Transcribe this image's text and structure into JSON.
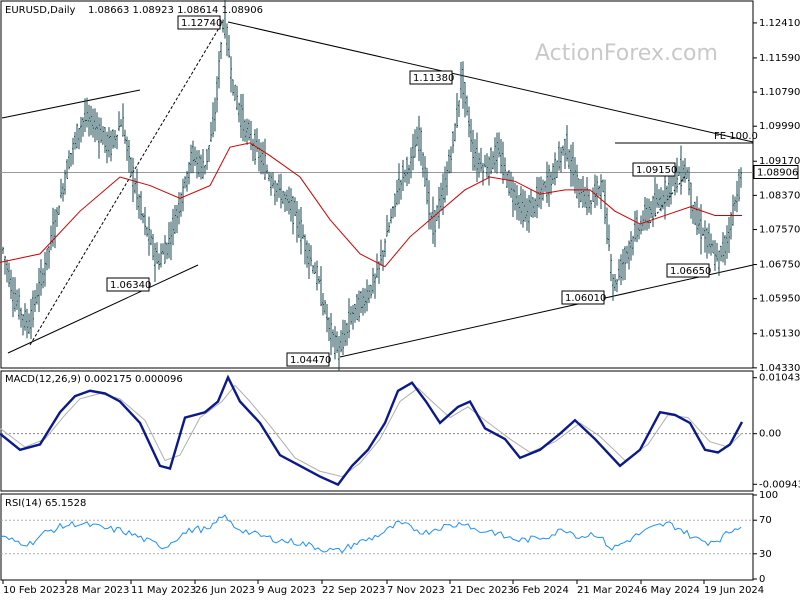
{
  "header": {
    "title": "EURUSD,Daily",
    "ohlc": "1.08663 1.08923 1.08614 1.08906"
  },
  "watermark": "ActionForex.com",
  "chart_data": [
    {
      "type": "candlestick",
      "ylim": [
        1.0435,
        1.129
      ],
      "ticks": [
        "1.12410",
        "1.11590",
        "1.10790",
        "1.09990",
        "1.09170",
        "1.08370",
        "1.07570",
        "1.06750",
        "1.05950",
        "1.05130",
        "1.04330"
      ],
      "tick_values": [
        1.1241,
        1.1159,
        1.1079,
        1.0999,
        1.0917,
        1.0837,
        1.0757,
        1.0675,
        1.0595,
        1.0513,
        1.0433
      ],
      "last_price": "1.08906",
      "x_labels": [
        "10 Feb 2023",
        "28 Mar 2023",
        "11 May 2023",
        "26 Jun 2023",
        "9 Aug 2023",
        "22 Sep 2023",
        "7 Nov 2023",
        "21 Dec 2023",
        "6 Feb 2024",
        "21 Mar 2024",
        "6 May 2024",
        "19 Jun 2024"
      ],
      "annotations": [
        "1.12740",
        "1.11380",
        "1.06340",
        "1.04470",
        "1.06010",
        "1.09150",
        "1.06650"
      ],
      "fe_label": "FE 100.0",
      "price_path": [
        [
          0,
          1.074
        ],
        [
          14,
          1.06
        ],
        [
          28,
          1.053
        ],
        [
          42,
          1.064
        ],
        [
          56,
          1.078
        ],
        [
          70,
          1.093
        ],
        [
          84,
          1.102
        ],
        [
          96,
          1.1
        ],
        [
          110,
          1.095
        ],
        [
          122,
          1.101
        ],
        [
          134,
          1.087
        ],
        [
          146,
          1.076
        ],
        [
          158,
          1.068
        ],
        [
          168,
          1.072
        ],
        [
          180,
          1.082
        ],
        [
          192,
          1.093
        ],
        [
          204,
          1.09
        ],
        [
          214,
          1.1
        ],
        [
          224,
          1.1262
        ],
        [
          234,
          1.108
        ],
        [
          246,
          1.099
        ],
        [
          258,
          1.094
        ],
        [
          270,
          1.088
        ],
        [
          282,
          1.084
        ],
        [
          294,
          1.08
        ],
        [
          306,
          1.072
        ],
        [
          318,
          1.064
        ],
        [
          330,
          1.052
        ],
        [
          340,
          1.047
        ],
        [
          352,
          1.056
        ],
        [
          364,
          1.059
        ],
        [
          376,
          1.064
        ],
        [
          388,
          1.075
        ],
        [
          400,
          1.087
        ],
        [
          412,
          1.092
        ],
        [
          420,
          1.098
        ],
        [
          432,
          1.076
        ],
        [
          444,
          1.084
        ],
        [
          456,
          1.1
        ],
        [
          462,
          1.112
        ],
        [
          474,
          1.093
        ],
        [
          486,
          1.09
        ],
        [
          498,
          1.094
        ],
        [
          512,
          1.085
        ],
        [
          526,
          1.079
        ],
        [
          538,
          1.083
        ],
        [
          552,
          1.088
        ],
        [
          566,
          1.096
        ],
        [
          578,
          1.085
        ],
        [
          590,
          1.082
        ],
        [
          602,
          1.087
        ],
        [
          614,
          1.062
        ],
        [
          626,
          1.07
        ],
        [
          638,
          1.076
        ],
        [
          650,
          1.08
        ],
        [
          662,
          1.083
        ],
        [
          674,
          1.088
        ],
        [
          686,
          1.09
        ],
        [
          696,
          1.078
        ],
        [
          708,
          1.073
        ],
        [
          718,
          1.068
        ],
        [
          728,
          1.074
        ],
        [
          736,
          1.083
        ],
        [
          742,
          1.089
        ]
      ],
      "ma_path": [
        [
          0,
          1.068
        ],
        [
          40,
          1.07
        ],
        [
          80,
          1.08
        ],
        [
          120,
          1.088
        ],
        [
          150,
          1.086
        ],
        [
          180,
          1.083
        ],
        [
          210,
          1.086
        ],
        [
          230,
          1.095
        ],
        [
          250,
          1.096
        ],
        [
          270,
          1.093
        ],
        [
          300,
          1.088
        ],
        [
          330,
          1.078
        ],
        [
          360,
          1.07
        ],
        [
          385,
          1.067
        ],
        [
          410,
          1.074
        ],
        [
          440,
          1.08
        ],
        [
          465,
          1.085
        ],
        [
          490,
          1.088
        ],
        [
          515,
          1.087
        ],
        [
          540,
          1.084
        ],
        [
          565,
          1.085
        ],
        [
          590,
          1.085
        ],
        [
          615,
          1.08
        ],
        [
          640,
          1.077
        ],
        [
          665,
          1.079
        ],
        [
          690,
          1.081
        ],
        [
          715,
          1.079
        ],
        [
          742,
          1.079
        ]
      ]
    },
    {
      "type": "line",
      "title": "MACD(12,26,9) 0.002175 0.000096",
      "ylim": [
        -0.0105,
        0.0115
      ],
      "ticks": [
        "0.010434",
        "0.00",
        "-0.009436"
      ],
      "tick_values": [
        0.010434,
        0.0,
        -0.009436
      ],
      "macd_path": [
        [
          0,
          0.0
        ],
        [
          20,
          -0.003
        ],
        [
          40,
          -0.002
        ],
        [
          60,
          0.004
        ],
        [
          75,
          0.007
        ],
        [
          90,
          0.008
        ],
        [
          105,
          0.0075
        ],
        [
          120,
          0.006
        ],
        [
          140,
          0.002
        ],
        [
          160,
          -0.006
        ],
        [
          170,
          -0.0065
        ],
        [
          185,
          0.003
        ],
        [
          205,
          0.004
        ],
        [
          218,
          0.006
        ],
        [
          228,
          0.0105
        ],
        [
          240,
          0.006
        ],
        [
          260,
          0.002
        ],
        [
          280,
          -0.004
        ],
        [
          300,
          -0.006
        ],
        [
          320,
          -0.008
        ],
        [
          338,
          -0.0095
        ],
        [
          352,
          -0.006
        ],
        [
          368,
          -0.003
        ],
        [
          385,
          0.002
        ],
        [
          398,
          0.008
        ],
        [
          412,
          0.0095
        ],
        [
          426,
          0.006
        ],
        [
          440,
          0.002
        ],
        [
          458,
          0.005
        ],
        [
          470,
          0.006
        ],
        [
          485,
          0.001
        ],
        [
          505,
          -0.001
        ],
        [
          520,
          -0.0045
        ],
        [
          540,
          -0.003
        ],
        [
          560,
          0.0
        ],
        [
          575,
          0.0025
        ],
        [
          595,
          -0.001
        ],
        [
          620,
          -0.006
        ],
        [
          640,
          -0.003
        ],
        [
          660,
          0.004
        ],
        [
          675,
          0.0035
        ],
        [
          690,
          0.002
        ],
        [
          705,
          -0.003
        ],
        [
          718,
          -0.0035
        ],
        [
          730,
          -0.002
        ],
        [
          742,
          0.0022
        ]
      ],
      "signal_path": [
        [
          0,
          0.001
        ],
        [
          25,
          -0.0025
        ],
        [
          45,
          -0.001
        ],
        [
          65,
          0.0035
        ],
        [
          80,
          0.0065
        ],
        [
          100,
          0.0075
        ],
        [
          120,
          0.0065
        ],
        [
          145,
          0.0025
        ],
        [
          165,
          -0.005
        ],
        [
          180,
          -0.004
        ],
        [
          200,
          0.003
        ],
        [
          222,
          0.006
        ],
        [
          235,
          0.009
        ],
        [
          250,
          0.006
        ],
        [
          270,
          0.0015
        ],
        [
          295,
          -0.0045
        ],
        [
          320,
          -0.007
        ],
        [
          342,
          -0.008
        ],
        [
          360,
          -0.0055
        ],
        [
          380,
          -0.001
        ],
        [
          400,
          0.006
        ],
        [
          418,
          0.0085
        ],
        [
          432,
          0.006
        ],
        [
          450,
          0.003
        ],
        [
          468,
          0.005
        ],
        [
          485,
          0.0025
        ],
        [
          510,
          -0.001
        ],
        [
          530,
          -0.0035
        ],
        [
          555,
          -0.0015
        ],
        [
          580,
          0.002
        ],
        [
          600,
          -0.0005
        ],
        [
          625,
          -0.005
        ],
        [
          648,
          -0.002
        ],
        [
          668,
          0.0035
        ],
        [
          688,
          0.003
        ],
        [
          710,
          -0.0015
        ],
        [
          728,
          -0.0025
        ],
        [
          742,
          0.0001
        ]
      ]
    },
    {
      "type": "line",
      "title": "RSI(14) 65.1528",
      "ylim": [
        0,
        100
      ],
      "ticks": [
        "100",
        "70",
        "30",
        "0"
      ],
      "tick_values": [
        100,
        70,
        30,
        0
      ],
      "rsi_path": [
        [
          0,
          50
        ],
        [
          15,
          45
        ],
        [
          30,
          42
        ],
        [
          45,
          55
        ],
        [
          60,
          62
        ],
        [
          75,
          66
        ],
        [
          90,
          64
        ],
        [
          105,
          60
        ],
        [
          120,
          58
        ],
        [
          135,
          52
        ],
        [
          150,
          44
        ],
        [
          165,
          38
        ],
        [
          180,
          52
        ],
        [
          195,
          60
        ],
        [
          210,
          58
        ],
        [
          222,
          76
        ],
        [
          235,
          62
        ],
        [
          250,
          55
        ],
        [
          265,
          50
        ],
        [
          280,
          46
        ],
        [
          295,
          44
        ],
        [
          310,
          40
        ],
        [
          325,
          35
        ],
        [
          340,
          33
        ],
        [
          355,
          42
        ],
        [
          370,
          48
        ],
        [
          385,
          56
        ],
        [
          398,
          66
        ],
        [
          410,
          62
        ],
        [
          425,
          55
        ],
        [
          440,
          62
        ],
        [
          455,
          64
        ],
        [
          465,
          68
        ],
        [
          478,
          56
        ],
        [
          490,
          58
        ],
        [
          505,
          50
        ],
        [
          520,
          46
        ],
        [
          535,
          48
        ],
        [
          550,
          52
        ],
        [
          565,
          60
        ],
        [
          580,
          50
        ],
        [
          595,
          55
        ],
        [
          612,
          36
        ],
        [
          625,
          44
        ],
        [
          640,
          54
        ],
        [
          655,
          62
        ],
        [
          668,
          66
        ],
        [
          680,
          60
        ],
        [
          695,
          48
        ],
        [
          708,
          44
        ],
        [
          720,
          48
        ],
        [
          732,
          58
        ],
        [
          742,
          65
        ]
      ]
    }
  ]
}
